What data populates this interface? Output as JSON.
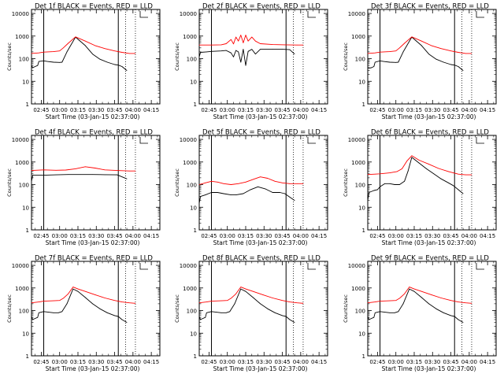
{
  "colors": {
    "background": "#ffffff",
    "axis": "#000000",
    "events": "#000000",
    "lld": "#ff0000"
  },
  "shared": {
    "ylabel": "Counts/sec",
    "xlabel": "Start Time (03-Jan-15 02:37:00)",
    "x_ticks": [
      "02:45",
      "03:00",
      "03:15",
      "03:30",
      "03:45",
      "04:00",
      "04:15"
    ],
    "y_ticks": [
      "1",
      "10",
      "100",
      "1000",
      "10000"
    ],
    "ylim": [
      1,
      15000
    ],
    "y_scale": "log",
    "x_range_minutes": [
      0,
      105
    ],
    "solid_vlines_minutes": [
      10,
      71
    ],
    "dotted_vlines_minutes": [
      77,
      85
    ],
    "legend_marker": "corner-bracket"
  },
  "chart_data": [
    {
      "type": "line",
      "title": "Det 1f BLACK = Events, RED = LLD",
      "series": [
        {
          "name": "Events",
          "color": "#000000",
          "x": [
            0,
            1,
            3,
            5,
            6,
            10,
            13,
            18,
            23,
            25,
            29,
            36,
            44,
            50,
            56,
            62,
            68,
            71,
            74,
            78
          ],
          "values": [
            50,
            40,
            45,
            50,
            75,
            80,
            75,
            70,
            68,
            70,
            200,
            900,
            380,
            160,
            95,
            70,
            55,
            52,
            45,
            30
          ]
        },
        {
          "name": "LLD",
          "color": "#ff0000",
          "x": [
            0,
            6,
            10,
            18,
            23,
            26,
            30,
            36,
            44,
            52,
            60,
            68,
            74,
            80,
            85
          ],
          "values": [
            170,
            180,
            195,
            205,
            220,
            300,
            480,
            920,
            600,
            380,
            280,
            220,
            190,
            170,
            170
          ]
        }
      ]
    },
    {
      "type": "line",
      "title": "Det 2f BLACK = Events, RED = LLD",
      "series": [
        {
          "name": "Events",
          "color": "#000000",
          "x": [
            0,
            1,
            6,
            10,
            18,
            22,
            26,
            28,
            30,
            32,
            34,
            36,
            38,
            40,
            43,
            46,
            50,
            60,
            68,
            74,
            78
          ],
          "values": [
            120,
            190,
            200,
            210,
            220,
            230,
            180,
            120,
            230,
            200,
            70,
            260,
            50,
            210,
            260,
            160,
            260,
            260,
            260,
            250,
            160
          ]
        },
        {
          "name": "LLD",
          "color": "#ff0000",
          "x": [
            0,
            10,
            18,
            22,
            26,
            28,
            30,
            32,
            34,
            36,
            38,
            40,
            43,
            46,
            50,
            60,
            70,
            80,
            85
          ],
          "values": [
            400,
            400,
            410,
            460,
            700,
            450,
            900,
            600,
            1100,
            500,
            1100,
            600,
            900,
            600,
            460,
            420,
            410,
            400,
            400
          ]
        }
      ]
    },
    {
      "type": "line",
      "title": "Det 3f BLACK = Events, RED = LLD",
      "series": [
        {
          "name": "Events",
          "color": "#000000",
          "x": [
            0,
            1,
            3,
            5,
            6,
            10,
            13,
            18,
            23,
            25,
            29,
            36,
            44,
            50,
            56,
            62,
            68,
            71,
            74,
            78
          ],
          "values": [
            40,
            38,
            40,
            45,
            70,
            80,
            75,
            70,
            68,
            70,
            200,
            900,
            380,
            160,
            95,
            70,
            55,
            52,
            45,
            30
          ]
        },
        {
          "name": "LLD",
          "color": "#ff0000",
          "x": [
            0,
            6,
            10,
            18,
            23,
            26,
            30,
            36,
            44,
            52,
            60,
            68,
            74,
            80,
            85
          ],
          "values": [
            170,
            180,
            195,
            205,
            220,
            300,
            480,
            920,
            600,
            380,
            280,
            220,
            190,
            170,
            170
          ]
        }
      ]
    },
    {
      "type": "line",
      "title": "Det 4f BLACK = Events, RED = LLD",
      "series": [
        {
          "name": "Events",
          "color": "#000000",
          "x": [
            0,
            1,
            10,
            20,
            30,
            40,
            50,
            60,
            70,
            78
          ],
          "values": [
            140,
            260,
            260,
            270,
            280,
            280,
            280,
            275,
            270,
            180
          ]
        },
        {
          "name": "LLD",
          "color": "#ff0000",
          "x": [
            0,
            10,
            20,
            28,
            36,
            44,
            52,
            60,
            70,
            80,
            85
          ],
          "values": [
            420,
            450,
            430,
            440,
            500,
            620,
            540,
            450,
            420,
            400,
            400
          ]
        }
      ]
    },
    {
      "type": "line",
      "title": "Det 5f BLACK = Events, RED = LLD",
      "series": [
        {
          "name": "Events",
          "color": "#000000",
          "x": [
            0,
            1,
            5,
            10,
            15,
            20,
            26,
            30,
            36,
            42,
            48,
            54,
            60,
            66,
            70,
            74,
            78
          ],
          "values": [
            15,
            30,
            35,
            45,
            45,
            40,
            35,
            35,
            40,
            60,
            80,
            65,
            45,
            45,
            40,
            28,
            20
          ]
        },
        {
          "name": "LLD",
          "color": "#ff0000",
          "x": [
            0,
            5,
            10,
            15,
            20,
            26,
            32,
            38,
            44,
            50,
            56,
            62,
            68,
            74,
            80,
            85
          ],
          "values": [
            100,
            120,
            140,
            130,
            110,
            100,
            110,
            130,
            170,
            220,
            190,
            140,
            120,
            110,
            110,
            110
          ]
        }
      ]
    },
    {
      "type": "line",
      "title": "Det 6f BLACK = Events, RED = LLD",
      "series": [
        {
          "name": "Events",
          "color": "#000000",
          "x": [
            0,
            1,
            5,
            8,
            10,
            14,
            18,
            22,
            26,
            30,
            33,
            36,
            42,
            48,
            54,
            60,
            66,
            70,
            74,
            78
          ],
          "values": [
            20,
            45,
            55,
            60,
            80,
            110,
            110,
            100,
            100,
            140,
            400,
            1600,
            900,
            500,
            300,
            180,
            120,
            90,
            60,
            40
          ]
        },
        {
          "name": "LLD",
          "color": "#ff0000",
          "x": [
            0,
            6,
            10,
            18,
            24,
            28,
            32,
            36,
            42,
            50,
            58,
            66,
            74,
            80,
            85
          ],
          "values": [
            280,
            290,
            300,
            330,
            380,
            500,
            1100,
            1900,
            1200,
            800,
            520,
            380,
            290,
            270,
            270
          ]
        }
      ]
    },
    {
      "type": "line",
      "title": "Det 7f BLACK = Events, RED = LLD",
      "series": [
        {
          "name": "Events",
          "color": "#000000",
          "x": [
            0,
            1,
            3,
            5,
            6,
            10,
            14,
            18,
            22,
            25,
            29,
            34,
            38,
            44,
            50,
            56,
            62,
            68,
            71,
            74,
            78
          ],
          "values": [
            55,
            40,
            45,
            50,
            80,
            90,
            85,
            80,
            80,
            90,
            200,
            900,
            700,
            380,
            200,
            120,
            80,
            60,
            55,
            40,
            30
          ]
        },
        {
          "name": "LLD",
          "color": "#ff0000",
          "x": [
            0,
            6,
            10,
            18,
            23,
            26,
            30,
            34,
            38,
            44,
            52,
            60,
            68,
            74,
            80,
            85
          ],
          "values": [
            220,
            240,
            260,
            270,
            280,
            350,
            550,
            1100,
            900,
            700,
            500,
            360,
            280,
            240,
            220,
            210
          ]
        }
      ]
    },
    {
      "type": "line",
      "title": "Det 8f BLACK = Events, RED = LLD",
      "series": [
        {
          "name": "Events",
          "color": "#000000",
          "x": [
            0,
            1,
            3,
            5,
            6,
            10,
            14,
            18,
            22,
            25,
            29,
            34,
            38,
            44,
            50,
            56,
            62,
            68,
            71,
            74,
            78
          ],
          "values": [
            55,
            40,
            45,
            50,
            80,
            90,
            85,
            80,
            80,
            90,
            200,
            900,
            700,
            380,
            200,
            120,
            80,
            60,
            55,
            40,
            30
          ]
        },
        {
          "name": "LLD",
          "color": "#ff0000",
          "x": [
            0,
            6,
            10,
            18,
            23,
            26,
            30,
            34,
            38,
            44,
            52,
            60,
            68,
            74,
            80,
            85
          ],
          "values": [
            220,
            240,
            260,
            270,
            280,
            350,
            550,
            1100,
            900,
            700,
            500,
            360,
            280,
            240,
            220,
            210
          ]
        }
      ]
    },
    {
      "type": "line",
      "title": "Det 9f BLACK = Events, RED = LLD",
      "series": [
        {
          "name": "Events",
          "color": "#000000",
          "x": [
            0,
            1,
            3,
            5,
            6,
            10,
            14,
            18,
            22,
            25,
            29,
            34,
            38,
            44,
            50,
            56,
            62,
            68,
            71,
            74,
            78
          ],
          "values": [
            55,
            40,
            45,
            50,
            80,
            90,
            85,
            80,
            80,
            90,
            200,
            900,
            700,
            380,
            200,
            120,
            80,
            60,
            55,
            40,
            30
          ]
        },
        {
          "name": "LLD",
          "color": "#ff0000",
          "x": [
            0,
            6,
            10,
            18,
            23,
            26,
            30,
            34,
            38,
            44,
            52,
            60,
            68,
            74,
            80,
            85
          ],
          "values": [
            220,
            240,
            260,
            270,
            280,
            350,
            550,
            1100,
            900,
            700,
            500,
            360,
            280,
            240,
            220,
            210
          ]
        }
      ]
    }
  ]
}
